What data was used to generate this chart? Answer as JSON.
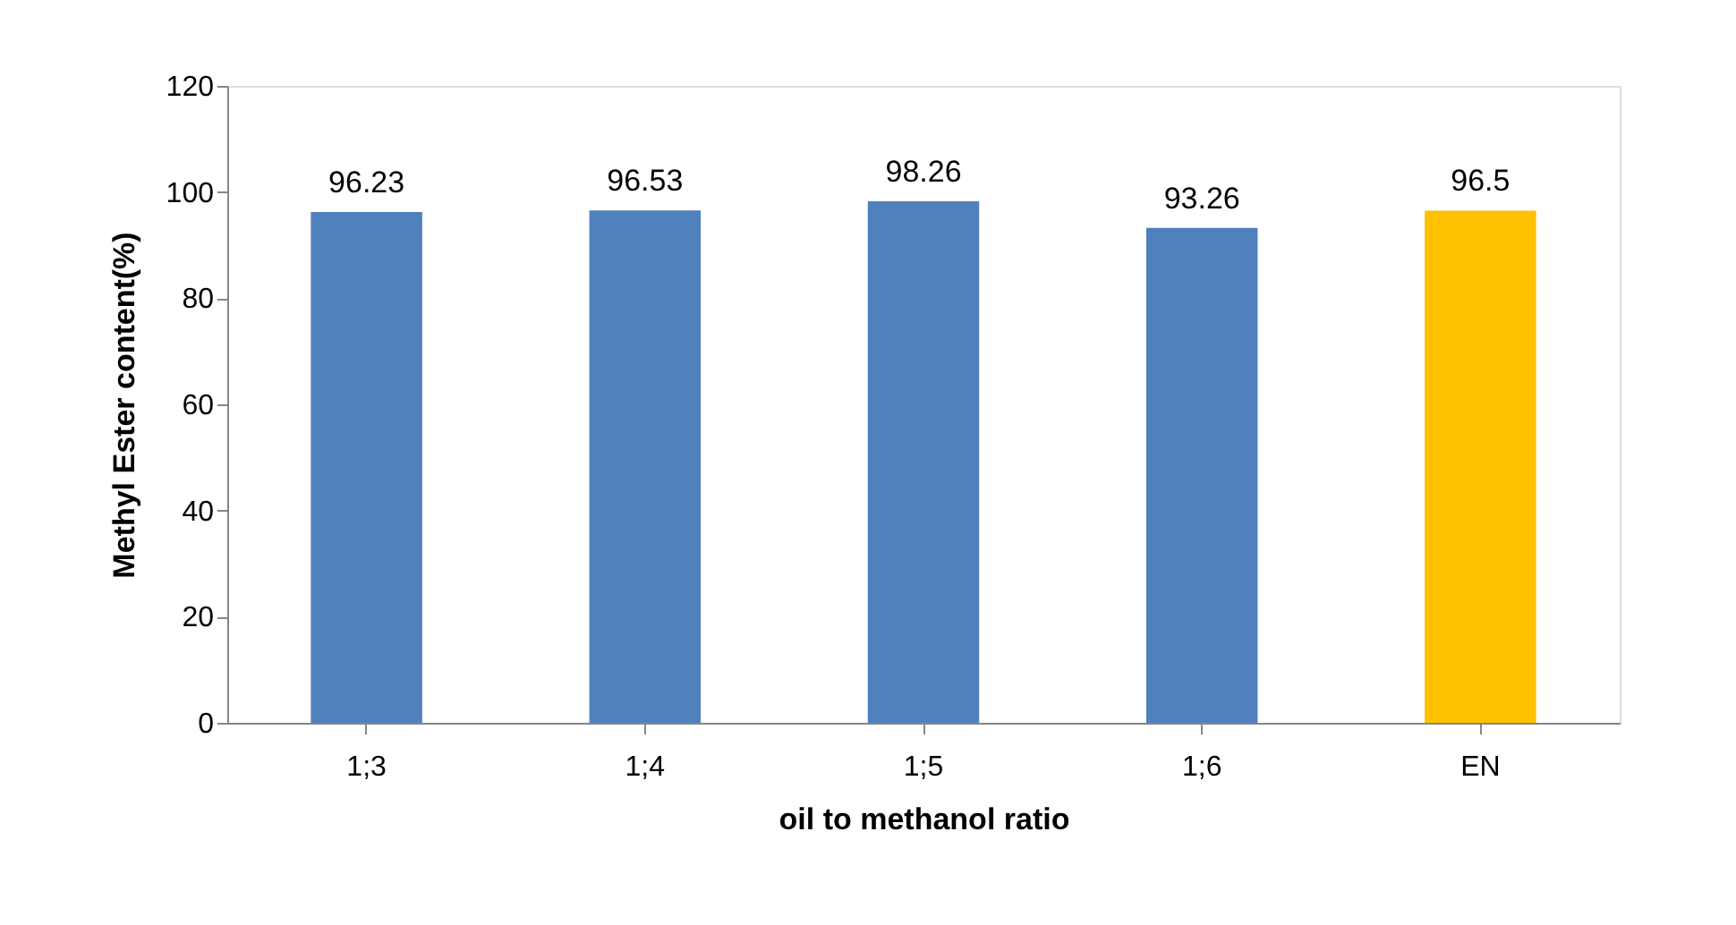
{
  "chart_data": {
    "type": "bar",
    "xlabel": "oil to methanol ratio",
    "ylabel": "Methyl Ester content(%)",
    "categories": [
      "1;3",
      "1;4",
      "1;5",
      "1;6",
      "EN"
    ],
    "values": [
      96.23,
      96.53,
      98.26,
      93.26,
      96.5
    ],
    "colors": [
      "#4f81bd",
      "#4f81bd",
      "#4f81bd",
      "#4f81bd",
      "#ffc000"
    ],
    "ylim": [
      0,
      120
    ],
    "yticks": [
      0,
      20,
      40,
      60,
      80,
      100,
      120
    ],
    "data_labels": true,
    "grid": false,
    "legend": false
  }
}
